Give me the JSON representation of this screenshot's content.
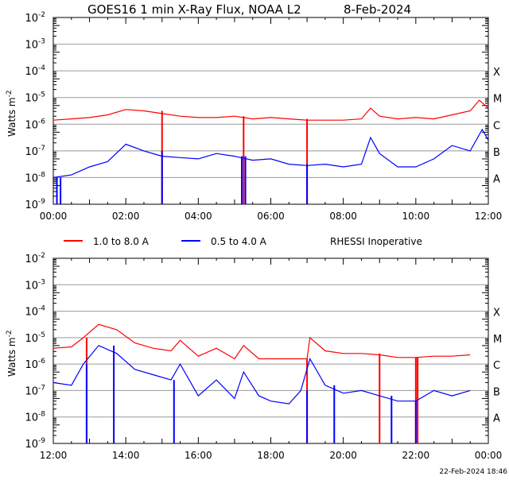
{
  "title": "GOES16 1 min X-Ray Flux, NOAA L2",
  "date": "8-Feb-2024",
  "timestamp": "22-Feb-2024 18:46",
  "legend": [
    {
      "label": "1.0 to 8.0 A",
      "color": "#ff0000"
    },
    {
      "label": "0.5 to 4.0 A",
      "color": "#0000ff"
    }
  ],
  "note": "RHESSI Inoperative",
  "colors": {
    "long": "#ff0000",
    "short": "#0000ff",
    "grid": "#999999"
  },
  "chart_data": [
    {
      "type": "line",
      "ylabel": "Watts m-2",
      "yscale": "log",
      "ylim": [
        1e-09,
        0.01
      ],
      "ytick_labels": [
        "-2",
        "-3",
        "-4",
        "-5",
        "-6",
        "-7",
        "-8",
        "-9"
      ],
      "flare_classes": [
        "X",
        "M",
        "C",
        "B",
        "A"
      ],
      "xlim_hours": [
        0,
        12
      ],
      "xtick_labels": [
        "00:00",
        "02:00",
        "04:00",
        "06:00",
        "08:00",
        "10:00",
        "12:00"
      ],
      "series": [
        {
          "name": "1.0 to 8.0 A",
          "x": [
            0,
            0.5,
            1,
            1.5,
            2,
            2.5,
            3,
            3.5,
            4,
            4.5,
            5,
            5.5,
            6,
            6.5,
            7,
            7.5,
            8,
            8.5,
            8.75,
            9,
            9.5,
            10,
            10.5,
            11,
            11.5,
            11.75,
            12
          ],
          "log10_values": [
            -5.85,
            -5.8,
            -5.75,
            -5.65,
            -5.45,
            -5.5,
            -5.6,
            -5.7,
            -5.75,
            -5.75,
            -5.7,
            -5.8,
            -5.75,
            -5.8,
            -5.85,
            -5.85,
            -5.85,
            -5.8,
            -5.4,
            -5.7,
            -5.8,
            -5.75,
            -5.8,
            -5.65,
            -5.5,
            -5.1,
            -5.4
          ],
          "dropouts": [
            3.0,
            5.25,
            7.0
          ]
        },
        {
          "name": "0.5 to 4.0 A",
          "x": [
            0,
            0.5,
            1,
            1.5,
            2,
            2.5,
            3,
            3.5,
            4,
            4.5,
            5,
            5.5,
            6,
            6.5,
            7,
            7.5,
            8,
            8.5,
            8.75,
            9,
            9.5,
            10,
            10.5,
            11,
            11.5,
            11.83,
            12
          ],
          "log10_values": [
            -8.0,
            -7.9,
            -7.6,
            -7.4,
            -6.75,
            -7.0,
            -7.2,
            -7.25,
            -7.3,
            -7.1,
            -7.2,
            -7.35,
            -7.3,
            -7.5,
            -7.55,
            -7.5,
            -7.6,
            -7.5,
            -6.5,
            -7.1,
            -7.6,
            -7.6,
            -7.3,
            -6.8,
            -7.0,
            -6.2,
            -6.6
          ],
          "dropouts": [
            0.1,
            0.2,
            3.0,
            5.2,
            5.3,
            7.0
          ]
        }
      ]
    },
    {
      "type": "line",
      "ylabel": "Watts m-2",
      "yscale": "log",
      "ylim": [
        1e-09,
        0.01
      ],
      "ytick_labels": [
        "-2",
        "-3",
        "-4",
        "-5",
        "-6",
        "-7",
        "-8",
        "-9"
      ],
      "flare_classes": [
        "X",
        "M",
        "C",
        "B",
        "A"
      ],
      "xlim_hours": [
        12,
        24
      ],
      "xtick_labels": [
        "12:00",
        "14:00",
        "16:00",
        "18:00",
        "20:00",
        "22:00",
        "00:00"
      ],
      "series": [
        {
          "name": "1.0 to 8.0 A",
          "x": [
            12,
            12.5,
            12.83,
            13.25,
            13.75,
            14.25,
            14.75,
            15.25,
            15.5,
            16,
            16.5,
            17,
            17.25,
            17.67,
            18,
            18.5,
            19,
            19.08,
            19.5,
            20,
            20.5,
            21,
            21.5,
            22,
            22.5,
            23,
            23.5
          ],
          "log10_values": [
            -5.4,
            -5.35,
            -5.0,
            -4.5,
            -4.7,
            -5.2,
            -5.4,
            -5.5,
            -5.1,
            -5.7,
            -5.4,
            -5.8,
            -5.3,
            -5.8,
            -5.8,
            -5.8,
            -5.8,
            -5.0,
            -5.5,
            -5.6,
            -5.6,
            -5.65,
            -5.75,
            -5.75,
            -5.7,
            -5.7,
            -5.65
          ],
          "dropouts": [
            12.92,
            19.0,
            21.0,
            22.0,
            22.05
          ]
        },
        {
          "name": "0.5 to 4.0 A",
          "x": [
            12,
            12.5,
            12.83,
            13.25,
            13.75,
            14.25,
            14.75,
            15.25,
            15.5,
            16,
            16.5,
            17,
            17.25,
            17.67,
            18,
            18.5,
            18.83,
            19.08,
            19.5,
            20,
            20.5,
            21,
            21.5,
            22,
            22.5,
            23,
            23.5
          ],
          "log10_values": [
            -6.7,
            -6.8,
            -6.0,
            -5.3,
            -5.6,
            -6.2,
            -6.4,
            -6.6,
            -6.0,
            -7.2,
            -6.6,
            -7.3,
            -6.3,
            -7.2,
            -7.4,
            -7.5,
            -7.0,
            -5.8,
            -6.8,
            -7.1,
            -7.0,
            -7.2,
            -7.4,
            -7.4,
            -7.0,
            -7.2,
            -7.0
          ],
          "dropouts": [
            12.92,
            13.67,
            15.33,
            19.0,
            19.75,
            21.33,
            22.0
          ]
        }
      ]
    }
  ]
}
